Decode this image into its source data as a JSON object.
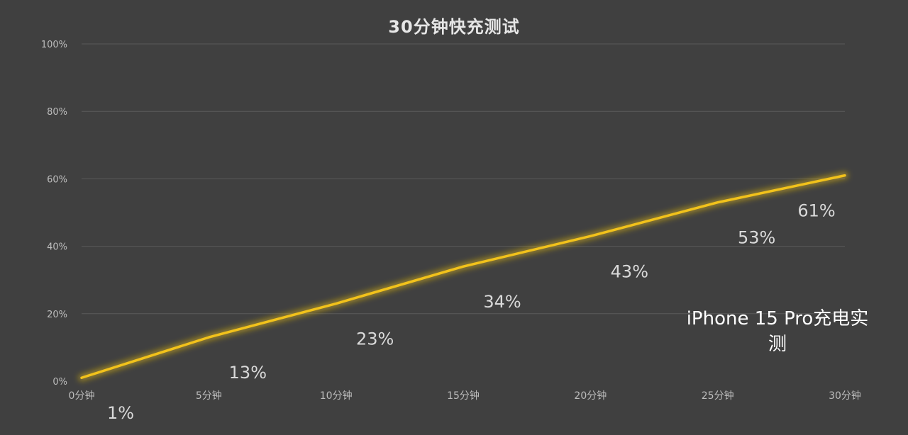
{
  "chart_data": {
    "type": "line",
    "title": "30分钟快充测试",
    "categories": [
      "0分钟",
      "5分钟",
      "10分钟",
      "15分钟",
      "20分钟",
      "25分钟",
      "30分钟"
    ],
    "series": [
      {
        "values": [
          1,
          13,
          23,
          34,
          43,
          53,
          61
        ],
        "data_labels": [
          "1%",
          "13%",
          "23%",
          "34%",
          "43%",
          "53%",
          "61%"
        ]
      }
    ],
    "yticks": [
      "0%",
      "20%",
      "40%",
      "60%",
      "80%",
      "100%"
    ],
    "ylim": [
      0,
      100
    ],
    "grid": true,
    "annotation": "iPhone 15 Pro充电实测",
    "colors": {
      "line": "#f2c21b",
      "glow": "#d8b31a",
      "background": "#404040",
      "grid": "#5a5a5a",
      "tick_text": "#bdbdbd",
      "data_label_text": "#d9d9d9"
    }
  }
}
